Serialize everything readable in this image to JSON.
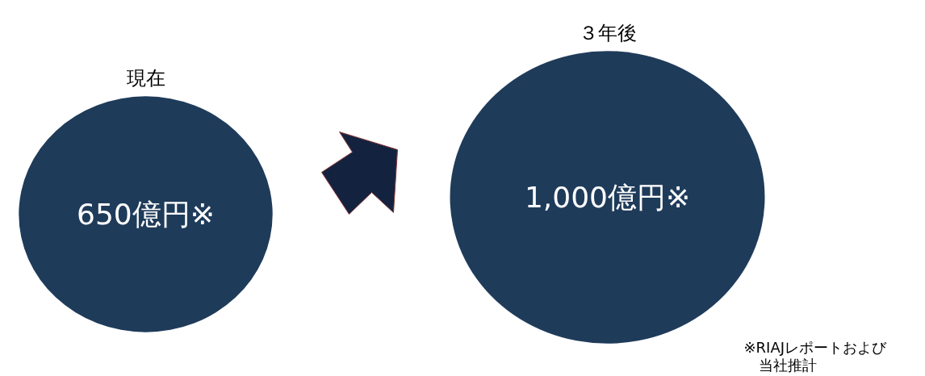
{
  "chart_data": {
    "type": "other",
    "categories": [
      "現在",
      "３年後"
    ],
    "values": [
      650,
      1000
    ],
    "colors": [
      "#1f3b5a",
      "#1f3b5a"
    ],
    "value_labels": [
      "650億円※",
      "1,000億円※"
    ],
    "annotations": [
      "※RIAJレポートおよび",
      "当社推計"
    ]
  }
}
